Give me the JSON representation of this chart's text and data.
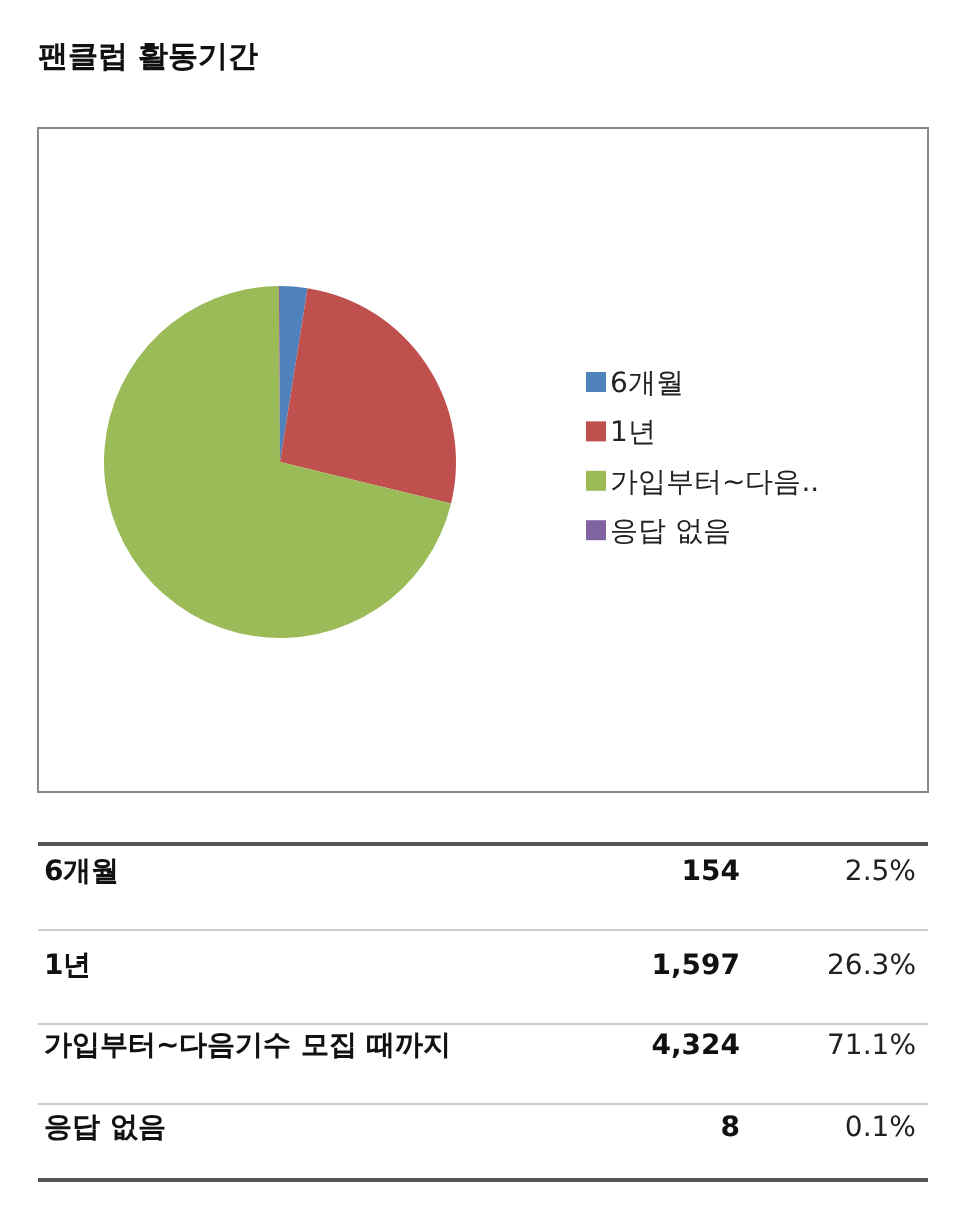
{
  "chart_data": [
    {
      "type": "pie",
      "title": "팬클럽 활동기간",
      "categories": [
        "6개월",
        "1년",
        "가입부터~다음..",
        "응답 없음"
      ],
      "values": [
        2.5,
        26.3,
        71.1,
        0.1
      ],
      "colors": [
        "#4f81bd",
        "#c0504d",
        "#9bbb59",
        "#8064a2"
      ],
      "legend": "right"
    },
    {
      "type": "other",
      "categories": [
        "6개월",
        "1년",
        "가입부터~다음기수 모집 때까지",
        "응답 없음"
      ],
      "annotations": [
        "154",
        "2.5%",
        "1,597",
        "26.3%",
        "4,324",
        "71.1%",
        "8",
        "0.1%"
      ]
    }
  ]
}
